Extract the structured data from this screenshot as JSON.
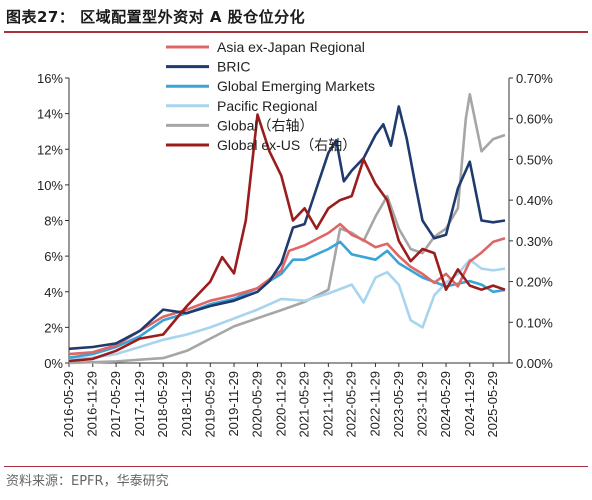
{
  "header": {
    "title": "图表27：  区域配置型外资对 A 股仓位分化"
  },
  "footer": {
    "source": "资料来源：EPFR，华泰研究"
  },
  "chart_data": {
    "type": "line",
    "x_ticks": [
      "2016-05-29",
      "2016-11-29",
      "2017-05-29",
      "2017-11-29",
      "2018-05-29",
      "2018-11-29",
      "2019-05-29",
      "2019-11-29",
      "2020-05-29",
      "2020-11-29",
      "2021-05-29",
      "2021-11-29",
      "2022-05-29",
      "2022-11-29",
      "2023-05-29",
      "2023-11-29",
      "2024-05-29",
      "2024-11-29",
      "2025-05-29"
    ],
    "x_range": [
      "2016-05-29",
      "2025-09-29"
    ],
    "y_left": {
      "ticks": [
        "0%",
        "2%",
        "4%",
        "6%",
        "8%",
        "10%",
        "12%",
        "14%",
        "16%"
      ],
      "min": 0,
      "max": 16
    },
    "y_right": {
      "ticks": [
        "0.00%",
        "0.10%",
        "0.20%",
        "0.30%",
        "0.40%",
        "0.50%",
        "0.60%",
        "0.70%"
      ],
      "min": 0,
      "max": 0.7
    },
    "series": [
      {
        "name": "Asia ex-Japan Regional",
        "axis": "left",
        "color": "#e06666",
        "points": [
          [
            "2016-05-29",
            0.5
          ],
          [
            "2016-11-29",
            0.6
          ],
          [
            "2017-05-29",
            1.0
          ],
          [
            "2017-11-29",
            1.8
          ],
          [
            "2018-05-29",
            2.6
          ],
          [
            "2018-11-29",
            3.0
          ],
          [
            "2019-05-29",
            3.5
          ],
          [
            "2019-11-29",
            3.8
          ],
          [
            "2020-05-29",
            4.2
          ],
          [
            "2020-11-29",
            5.2
          ],
          [
            "2021-01-29",
            6.3
          ],
          [
            "2021-05-29",
            6.6
          ],
          [
            "2021-11-29",
            7.3
          ],
          [
            "2022-02-28",
            7.8
          ],
          [
            "2022-05-29",
            7.2
          ],
          [
            "2022-08-29",
            6.9
          ],
          [
            "2022-11-29",
            6.5
          ],
          [
            "2023-02-28",
            6.7
          ],
          [
            "2023-05-29",
            6.0
          ],
          [
            "2023-08-29",
            5.4
          ],
          [
            "2023-11-29",
            5.0
          ],
          [
            "2024-02-28",
            4.5
          ],
          [
            "2024-05-29",
            5.0
          ],
          [
            "2024-08-29",
            4.3
          ],
          [
            "2024-11-29",
            5.7
          ],
          [
            "2025-02-28",
            6.2
          ],
          [
            "2025-05-29",
            6.8
          ],
          [
            "2025-08-29",
            7.0
          ]
        ]
      },
      {
        "name": "BRIC",
        "axis": "left",
        "color": "#1f3a6e",
        "points": [
          [
            "2016-05-29",
            0.8
          ],
          [
            "2016-11-29",
            0.9
          ],
          [
            "2017-05-29",
            1.1
          ],
          [
            "2017-11-29",
            1.8
          ],
          [
            "2018-05-29",
            3.0
          ],
          [
            "2018-11-29",
            2.8
          ],
          [
            "2019-05-29",
            3.2
          ],
          [
            "2019-11-29",
            3.5
          ],
          [
            "2020-05-29",
            4.0
          ],
          [
            "2020-08-29",
            4.6
          ],
          [
            "2020-11-29",
            5.6
          ],
          [
            "2021-02-28",
            7.6
          ],
          [
            "2021-05-29",
            7.8
          ],
          [
            "2021-08-29",
            9.8
          ],
          [
            "2021-11-29",
            11.8
          ],
          [
            "2022-01-29",
            12.5
          ],
          [
            "2022-03-29",
            10.2
          ],
          [
            "2022-05-29",
            10.8
          ],
          [
            "2022-08-29",
            11.5
          ],
          [
            "2022-11-29",
            12.8
          ],
          [
            "2023-01-29",
            13.4
          ],
          [
            "2023-03-29",
            12.2
          ],
          [
            "2023-05-29",
            14.4
          ],
          [
            "2023-07-29",
            12.6
          ],
          [
            "2023-09-29",
            10.2
          ],
          [
            "2023-11-29",
            8.0
          ],
          [
            "2024-02-28",
            7.0
          ],
          [
            "2024-05-29",
            7.2
          ],
          [
            "2024-08-29",
            9.8
          ],
          [
            "2024-11-29",
            11.3
          ],
          [
            "2025-02-28",
            8.0
          ],
          [
            "2025-05-29",
            7.9
          ],
          [
            "2025-08-29",
            8.0
          ]
        ]
      },
      {
        "name": "Global Emerging Markets",
        "axis": "left",
        "color": "#3aa4d8",
        "points": [
          [
            "2016-05-29",
            0.3
          ],
          [
            "2016-11-29",
            0.5
          ],
          [
            "2017-05-29",
            0.9
          ],
          [
            "2017-11-29",
            1.5
          ],
          [
            "2018-05-29",
            2.4
          ],
          [
            "2018-11-29",
            2.8
          ],
          [
            "2019-05-29",
            3.3
          ],
          [
            "2019-11-29",
            3.6
          ],
          [
            "2020-05-29",
            4.2
          ],
          [
            "2020-11-29",
            5.0
          ],
          [
            "2021-02-28",
            5.8
          ],
          [
            "2021-05-29",
            5.8
          ],
          [
            "2021-11-29",
            6.4
          ],
          [
            "2022-02-28",
            6.8
          ],
          [
            "2022-05-29",
            6.1
          ],
          [
            "2022-11-29",
            5.8
          ],
          [
            "2023-02-28",
            6.3
          ],
          [
            "2023-05-29",
            5.6
          ],
          [
            "2023-11-29",
            4.8
          ],
          [
            "2024-05-29",
            4.3
          ],
          [
            "2024-11-29",
            4.6
          ],
          [
            "2025-02-28",
            4.4
          ],
          [
            "2025-05-29",
            4.0
          ],
          [
            "2025-08-29",
            4.1
          ]
        ]
      },
      {
        "name": "Pacific Regional",
        "axis": "left",
        "color": "#a9d4ee",
        "points": [
          [
            "2016-05-29",
            0.2
          ],
          [
            "2016-11-29",
            0.3
          ],
          [
            "2017-05-29",
            0.5
          ],
          [
            "2017-11-29",
            0.9
          ],
          [
            "2018-05-29",
            1.3
          ],
          [
            "2018-11-29",
            1.6
          ],
          [
            "2019-05-29",
            2.0
          ],
          [
            "2019-11-29",
            2.5
          ],
          [
            "2020-05-29",
            3.0
          ],
          [
            "2020-11-29",
            3.6
          ],
          [
            "2021-05-29",
            3.5
          ],
          [
            "2021-11-29",
            3.9
          ],
          [
            "2022-05-29",
            4.4
          ],
          [
            "2022-08-29",
            3.4
          ],
          [
            "2022-11-29",
            4.8
          ],
          [
            "2023-02-28",
            5.1
          ],
          [
            "2023-05-29",
            4.4
          ],
          [
            "2023-08-29",
            2.4
          ],
          [
            "2023-11-29",
            2.0
          ],
          [
            "2024-02-28",
            3.8
          ],
          [
            "2024-05-29",
            4.5
          ],
          [
            "2024-08-29",
            5.0
          ],
          [
            "2024-11-29",
            5.8
          ],
          [
            "2025-02-28",
            5.3
          ],
          [
            "2025-05-29",
            5.2
          ],
          [
            "2025-08-29",
            5.3
          ]
        ]
      },
      {
        "name": "Global（右轴）",
        "axis": "right",
        "color": "#a6a6a6",
        "points": [
          [
            "2016-05-29",
            0.0
          ],
          [
            "2016-11-29",
            0.002
          ],
          [
            "2017-05-29",
            0.004
          ],
          [
            "2017-11-29",
            0.008
          ],
          [
            "2018-05-29",
            0.012
          ],
          [
            "2018-11-29",
            0.03
          ],
          [
            "2019-05-29",
            0.06
          ],
          [
            "2019-11-29",
            0.09
          ],
          [
            "2020-05-29",
            0.11
          ],
          [
            "2020-11-29",
            0.13
          ],
          [
            "2021-05-29",
            0.15
          ],
          [
            "2021-11-29",
            0.18
          ],
          [
            "2022-02-28",
            0.33
          ],
          [
            "2022-05-29",
            0.32
          ],
          [
            "2022-08-29",
            0.3
          ],
          [
            "2022-11-29",
            0.36
          ],
          [
            "2023-02-28",
            0.41
          ],
          [
            "2023-05-29",
            0.33
          ],
          [
            "2023-08-29",
            0.28
          ],
          [
            "2023-11-29",
            0.27
          ],
          [
            "2024-02-28",
            0.31
          ],
          [
            "2024-05-29",
            0.33
          ],
          [
            "2024-08-29",
            0.38
          ],
          [
            "2024-10-29",
            0.6
          ],
          [
            "2024-11-29",
            0.66
          ],
          [
            "2025-02-28",
            0.52
          ],
          [
            "2025-05-29",
            0.55
          ],
          [
            "2025-08-29",
            0.56
          ]
        ]
      },
      {
        "name": "Global ex-US（右轴）",
        "axis": "right",
        "color": "#9b1c1c",
        "points": [
          [
            "2016-05-29",
            0.005
          ],
          [
            "2016-11-29",
            0.01
          ],
          [
            "2017-05-29",
            0.03
          ],
          [
            "2017-11-29",
            0.06
          ],
          [
            "2018-05-29",
            0.07
          ],
          [
            "2018-11-29",
            0.14
          ],
          [
            "2019-05-29",
            0.2
          ],
          [
            "2019-08-29",
            0.26
          ],
          [
            "2019-11-29",
            0.22
          ],
          [
            "2020-02-28",
            0.35
          ],
          [
            "2020-05-29",
            0.61
          ],
          [
            "2020-08-29",
            0.52
          ],
          [
            "2020-11-29",
            0.46
          ],
          [
            "2021-02-28",
            0.35
          ],
          [
            "2021-05-29",
            0.38
          ],
          [
            "2021-08-29",
            0.33
          ],
          [
            "2021-11-29",
            0.38
          ],
          [
            "2022-02-28",
            0.4
          ],
          [
            "2022-05-29",
            0.41
          ],
          [
            "2022-08-29",
            0.5
          ],
          [
            "2022-11-29",
            0.44
          ],
          [
            "2023-02-28",
            0.4
          ],
          [
            "2023-05-29",
            0.3
          ],
          [
            "2023-08-29",
            0.25
          ],
          [
            "2023-11-29",
            0.28
          ],
          [
            "2024-02-28",
            0.27
          ],
          [
            "2024-05-29",
            0.18
          ],
          [
            "2024-08-29",
            0.23
          ],
          [
            "2024-11-29",
            0.19
          ],
          [
            "2025-02-28",
            0.18
          ],
          [
            "2025-05-29",
            0.19
          ],
          [
            "2025-08-29",
            0.18
          ]
        ]
      }
    ]
  }
}
